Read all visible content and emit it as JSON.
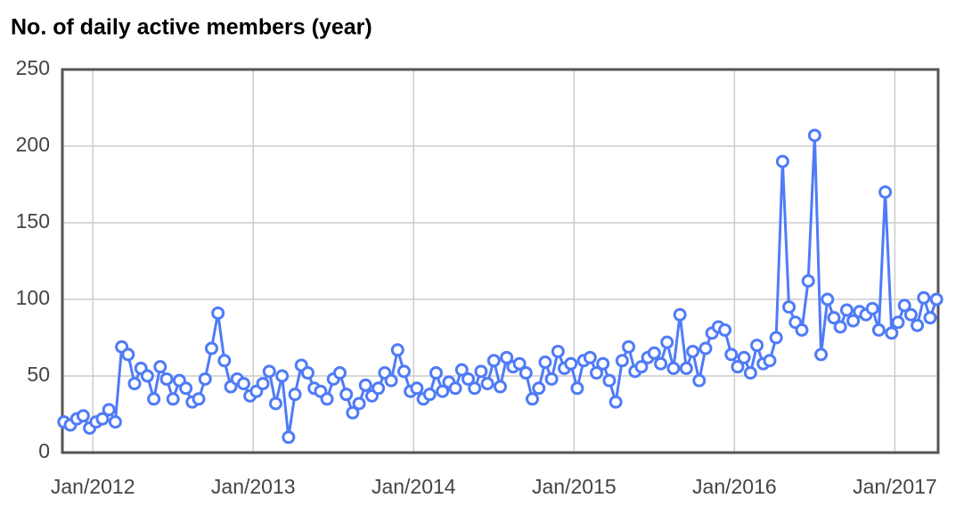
{
  "chart_data": {
    "type": "line",
    "title": "No. of daily active members (year)",
    "x": [
      2011.82,
      2011.86,
      2011.9,
      2011.94,
      2011.98,
      2012.02,
      2012.06,
      2012.1,
      2012.14,
      2012.18,
      2012.22,
      2012.26,
      2012.3,
      2012.34,
      2012.38,
      2012.42,
      2012.46,
      2012.5,
      2012.54,
      2012.58,
      2012.62,
      2012.66,
      2012.7,
      2012.74,
      2012.78,
      2012.82,
      2012.86,
      2012.9,
      2012.94,
      2012.98,
      2013.02,
      2013.06,
      2013.1,
      2013.14,
      2013.18,
      2013.22,
      2013.26,
      2013.3,
      2013.34,
      2013.38,
      2013.42,
      2013.46,
      2013.5,
      2013.54,
      2013.58,
      2013.62,
      2013.66,
      2013.7,
      2013.74,
      2013.78,
      2013.82,
      2013.86,
      2013.9,
      2013.94,
      2013.98,
      2014.02,
      2014.06,
      2014.1,
      2014.14,
      2014.18,
      2014.22,
      2014.26,
      2014.3,
      2014.34,
      2014.38,
      2014.42,
      2014.46,
      2014.5,
      2014.54,
      2014.58,
      2014.62,
      2014.66,
      2014.7,
      2014.74,
      2014.78,
      2014.82,
      2014.86,
      2014.9,
      2014.94,
      2014.98,
      2015.02,
      2015.06,
      2015.1,
      2015.14,
      2015.18,
      2015.22,
      2015.26,
      2015.3,
      2015.34,
      2015.38,
      2015.42,
      2015.46,
      2015.5,
      2015.54,
      2015.58,
      2015.62,
      2015.66,
      2015.7,
      2015.74,
      2015.78,
      2015.82,
      2015.86,
      2015.9,
      2015.94,
      2015.98,
      2016.02,
      2016.06,
      2016.1,
      2016.14,
      2016.18,
      2016.22,
      2016.26,
      2016.3,
      2016.34,
      2016.38,
      2016.42,
      2016.46,
      2016.5,
      2016.54,
      2016.58,
      2016.62,
      2016.66,
      2016.7,
      2016.74,
      2016.78,
      2016.82,
      2016.86,
      2016.9,
      2016.94,
      2016.98,
      2017.02,
      2017.06,
      2017.1,
      2017.14,
      2017.18,
      2017.22,
      2017.26
    ],
    "series": [
      {
        "color": "#4f7bf7",
        "values": [
          20,
          18,
          22,
          24,
          16,
          20,
          22,
          28,
          20,
          69,
          64,
          45,
          55,
          50,
          35,
          56,
          48,
          35,
          47,
          42,
          33,
          35,
          48,
          68,
          91,
          60,
          43,
          48,
          45,
          37,
          40,
          45,
          53,
          32,
          50,
          10,
          38,
          57,
          52,
          42,
          40,
          35,
          48,
          52,
          38,
          26,
          32,
          44,
          37,
          42,
          52,
          47,
          67,
          53,
          40,
          42,
          35,
          38,
          52,
          40,
          46,
          42,
          54,
          48,
          42,
          53,
          45,
          60,
          43,
          62,
          56,
          58,
          52,
          35,
          42,
          59,
          48,
          66,
          55,
          58,
          42,
          60,
          62,
          52,
          58,
          47,
          33,
          60,
          69,
          53,
          56,
          62,
          65,
          58,
          72,
          55,
          90,
          55,
          66,
          47,
          68,
          78,
          82,
          80,
          64,
          56,
          62,
          52,
          70,
          58,
          60,
          75,
          190,
          95,
          85,
          80,
          112,
          207,
          64,
          100,
          88,
          82,
          93,
          86,
          92,
          90,
          94,
          80,
          170,
          78,
          85,
          96,
          90,
          83,
          101,
          88,
          100
        ]
      }
    ],
    "xlim": [
      2011.81,
      2017.27
    ],
    "xticks": [
      {
        "value": 2012,
        "label": "Jan/2012"
      },
      {
        "value": 2013,
        "label": "Jan/2013"
      },
      {
        "value": 2014,
        "label": "Jan/2014"
      },
      {
        "value": 2015,
        "label": "Jan/2015"
      },
      {
        "value": 2016,
        "label": "Jan/2016"
      },
      {
        "value": 2017,
        "label": "Jan/2017"
      }
    ],
    "ylim": [
      0,
      250
    ],
    "yticks": [
      0,
      50,
      100,
      150,
      200,
      250
    ],
    "grid": true
  }
}
